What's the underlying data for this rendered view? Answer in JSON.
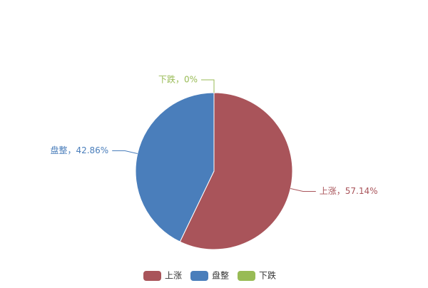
{
  "chart_data": {
    "type": "pie",
    "categories": [
      "上涨",
      "盘整",
      "下跌"
    ],
    "values": [
      57.14,
      42.86,
      0
    ],
    "value_labels": [
      "上涨，57.14%",
      "盘整，42.86%",
      "下跌，0%"
    ],
    "colors": [
      "#a9545a",
      "#4a7ebb",
      "#98bb55"
    ]
  }
}
